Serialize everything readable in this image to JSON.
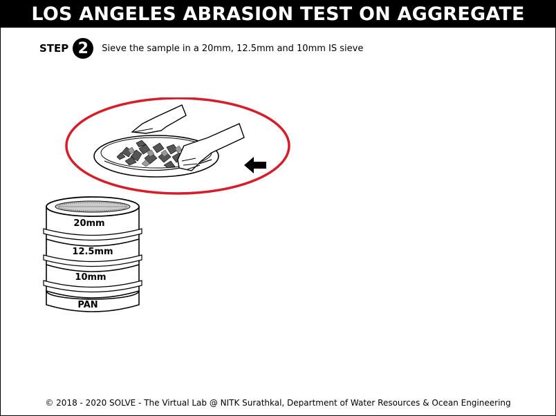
{
  "header": {
    "title": "LOS ANGELES ABRASION TEST ON AGGREGATE"
  },
  "step": {
    "label": "STEP",
    "number": "2",
    "instruction": "Sieve the sample in a 20mm, 12.5mm and 10mm IS sieve"
  },
  "sieves": {
    "labels": [
      "20mm",
      "12.5mm",
      "10mm",
      "PAN"
    ]
  },
  "colors": {
    "highlight": "#d61e2a",
    "title_bg": "#000000",
    "title_text": "#ffffff"
  },
  "icons": {
    "highlight": "red-ellipse-icon",
    "pointer": "left-arrow-icon",
    "tray": "tray-with-hands-icon",
    "stack": "sieve-stack-icon"
  },
  "footer": {
    "text": "© 2018 - 2020 SOLVE - The Virtual Lab @ NITK Surathkal, Department of Water Resources & Ocean Engineering"
  }
}
